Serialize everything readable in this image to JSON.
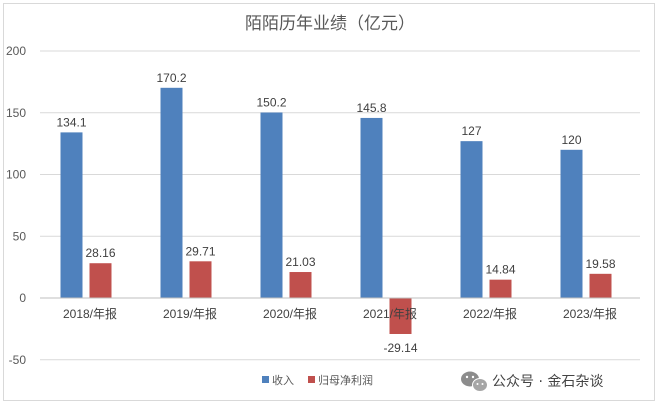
{
  "chart_data": {
    "type": "bar",
    "title": "陌陌历年业绩（亿元）",
    "categories": [
      "2018/年报",
      "2019/年报",
      "2020/年报",
      "2021/年报",
      "2022/年报",
      "2023/年报"
    ],
    "series": [
      {
        "name": "收入",
        "color": "#4f81bd",
        "values": [
          134.1,
          170.2,
          150.2,
          145.8,
          127,
          120
        ],
        "labels": [
          "134.1",
          "170.2",
          "150.2",
          "145.8",
          "127",
          "120"
        ]
      },
      {
        "name": "归母净利润",
        "color": "#c0504d",
        "values": [
          28.16,
          29.71,
          21.03,
          -29.14,
          14.84,
          19.58
        ],
        "labels": [
          "28.16",
          "29.71",
          "21.03",
          "-29.14",
          "14.84",
          "19.58"
        ]
      }
    ],
    "ylim": [
      -50,
      200
    ],
    "yticks": [
      -50,
      0,
      50,
      100,
      150,
      200
    ],
    "grid": true,
    "legend_position": "bottom"
  },
  "watermark": {
    "text": "公众号 · 金石杂谈",
    "icon": "wechat-icon"
  }
}
